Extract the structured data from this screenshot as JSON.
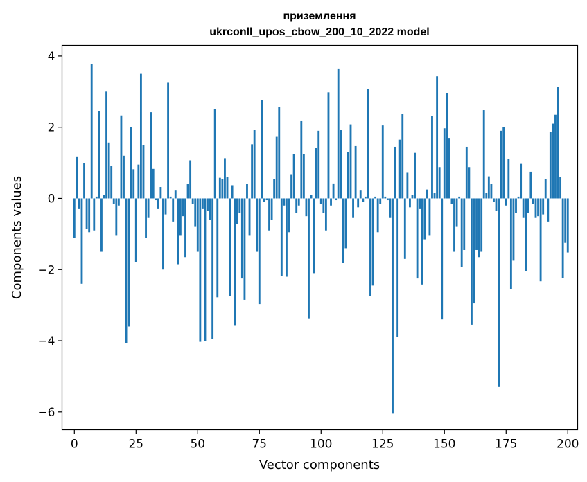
{
  "chart_data": {
    "type": "bar",
    "title": "приземлення",
    "subtitle": "ukrconll_upos_cbow_200_10_2022 model",
    "xlabel": "Vector components",
    "ylabel": "Components values",
    "xlim": [
      -5,
      204
    ],
    "ylim": [
      -6.5,
      4.3
    ],
    "xticks": [
      0,
      25,
      50,
      75,
      100,
      125,
      150,
      175,
      200
    ],
    "xtick_labels": [
      "0",
      "25",
      "50",
      "75",
      "100",
      "125",
      "150",
      "175",
      "200"
    ],
    "yticks": [
      -6,
      -4,
      -2,
      0,
      2,
      4
    ],
    "ytick_labels": [
      "−6",
      "−4",
      "−2",
      "0",
      "2",
      "4"
    ],
    "grid": false,
    "bar_color": "#1f77b4",
    "series": [
      {
        "values": [
          -1.1,
          1.18,
          -0.3,
          -2.4,
          1.0,
          -0.85,
          -0.95,
          3.77,
          -0.9,
          0.05,
          2.45,
          -1.5,
          0.1,
          3.0,
          1.57,
          0.92,
          -0.15,
          -1.05,
          -0.2,
          2.33,
          1.2,
          -4.07,
          -3.6,
          2.0,
          0.82,
          -1.8,
          0.95,
          3.5,
          1.5,
          -1.1,
          -0.55,
          2.42,
          0.83,
          -0.05,
          -0.3,
          0.32,
          -2.0,
          -0.45,
          3.25,
          0.05,
          -0.65,
          0.22,
          -1.85,
          -1.05,
          -0.5,
          -1.65,
          0.4,
          1.07,
          -0.15,
          -0.8,
          -1.5,
          -4.03,
          -0.3,
          -4.0,
          -0.35,
          -0.6,
          -3.95,
          2.5,
          -2.78,
          0.58,
          0.55,
          1.13,
          0.6,
          -2.75,
          0.37,
          -3.58,
          -0.72,
          -0.4,
          -2.25,
          -2.85,
          0.4,
          -1.05,
          1.52,
          1.92,
          -1.5,
          -2.97,
          2.77,
          -0.1,
          -0.05,
          -0.9,
          -0.6,
          0.55,
          1.73,
          2.57,
          -2.18,
          -0.2,
          -2.2,
          -0.95,
          0.68,
          1.25,
          -0.4,
          -0.2,
          2.17,
          1.25,
          -0.5,
          -3.37,
          0.1,
          -2.1,
          1.42,
          1.9,
          -0.15,
          -0.4,
          -0.9,
          2.98,
          -0.2,
          0.42,
          -0.05,
          3.65,
          1.93,
          -1.82,
          -1.4,
          1.3,
          2.08,
          -0.55,
          1.47,
          -0.25,
          0.22,
          -0.1,
          0.05,
          3.07,
          -2.75,
          -2.45,
          0.05,
          -0.95,
          -0.15,
          2.05,
          0.05,
          -0.05,
          -0.55,
          -6.05,
          1.45,
          -3.9,
          1.65,
          2.37,
          -1.7,
          0.72,
          -0.25,
          0.1,
          1.28,
          -2.25,
          -0.3,
          -2.42,
          -1.15,
          0.25,
          -1.05,
          2.32,
          0.15,
          3.43,
          0.88,
          -3.4,
          1.97,
          2.95,
          1.7,
          -0.15,
          -1.5,
          -0.8,
          0.05,
          -1.93,
          -1.45,
          1.45,
          0.88,
          -3.55,
          -2.95,
          -1.45,
          -1.65,
          -1.5,
          2.48,
          0.15,
          0.62,
          0.4,
          -0.1,
          -0.35,
          -5.3,
          1.9,
          2.0,
          -0.2,
          1.1,
          -2.55,
          -1.75,
          -0.4,
          0.05,
          0.97,
          -0.55,
          -2.05,
          -0.4,
          0.75,
          -0.15,
          -0.55,
          -0.5,
          -2.33,
          -0.45,
          0.55,
          -0.65,
          1.87,
          2.1,
          2.35,
          3.13,
          0.6,
          -2.23,
          -1.25,
          -1.52
        ]
      }
    ]
  }
}
